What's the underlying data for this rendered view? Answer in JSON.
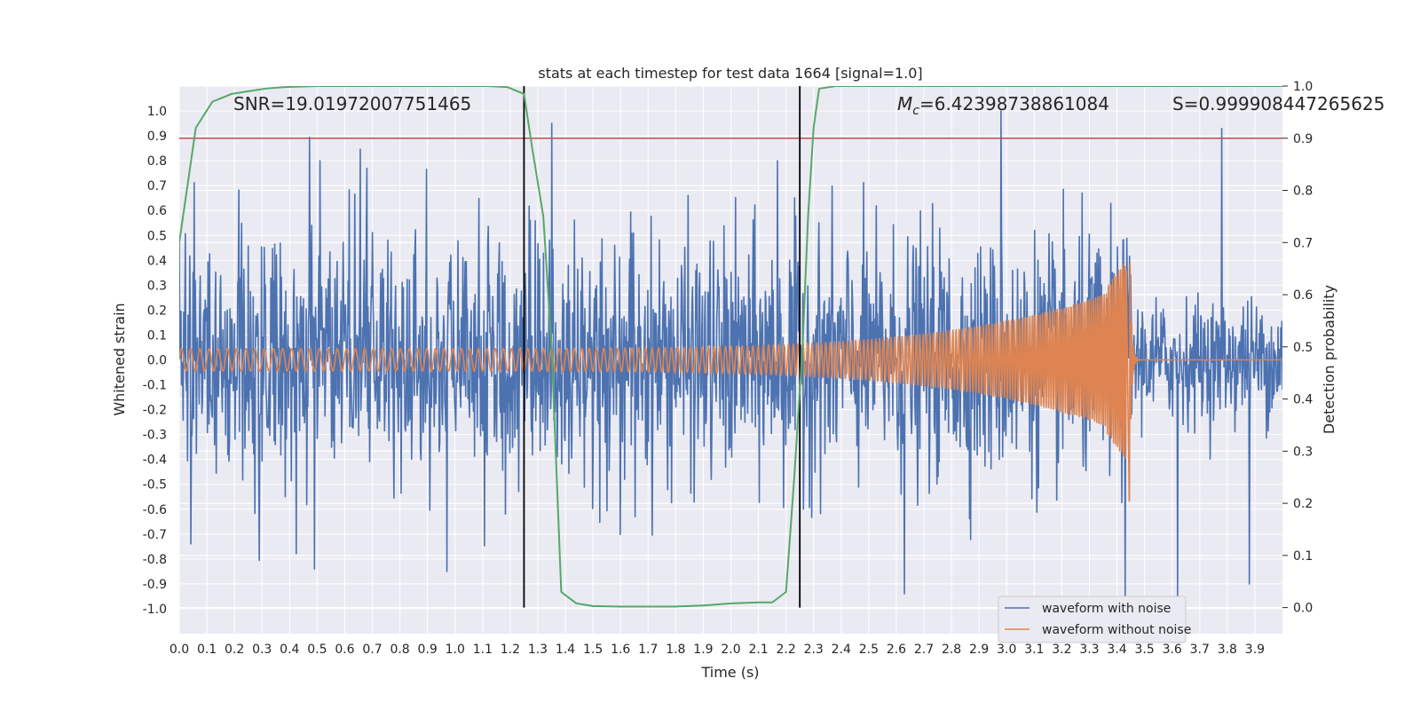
{
  "chart_data": {
    "type": "line",
    "title": "stats at each timestep for test data 1664 [signal=1.0]",
    "xlabel": "Time (s)",
    "ylabel": "Whitened strain",
    "ylabel_right": "Detection probability",
    "xlim": [
      0.0,
      4.0
    ],
    "ylim": [
      -1.1,
      1.1
    ],
    "ylim_right": [
      -0.05,
      1.0
    ],
    "grid": true,
    "xticks": [
      "0.0",
      "0.1",
      "0.2",
      "0.3",
      "0.4",
      "0.5",
      "0.6",
      "0.7",
      "0.8",
      "0.9",
      "1.0",
      "1.1",
      "1.2",
      "1.3",
      "1.4",
      "1.5",
      "1.6",
      "1.7",
      "1.8",
      "1.9",
      "2.0",
      "2.1",
      "2.2",
      "2.3",
      "2.4",
      "2.5",
      "2.6",
      "2.7",
      "2.8",
      "2.9",
      "3.0",
      "3.1",
      "3.2",
      "3.3",
      "3.4",
      "3.5",
      "3.6",
      "3.7",
      "3.8",
      "3.9"
    ],
    "yticks": [
      "1.0",
      "0.9",
      "0.8",
      "0.7",
      "0.6",
      "0.5",
      "0.4",
      "0.3",
      "0.2",
      "0.1",
      "0.0",
      "-0.1",
      "-0.2",
      "-0.3",
      "-0.4",
      "-0.5",
      "-0.6",
      "-0.7",
      "-0.8",
      "-0.9",
      "-1.0"
    ],
    "yticks_right": [
      "1.0",
      "0.9",
      "0.8",
      "0.7",
      "0.6",
      "0.5",
      "0.4",
      "0.3",
      "0.2",
      "0.1",
      "0.0"
    ],
    "annotations": {
      "snr": "SNR=19.01972007751465",
      "mc_symbol": "M",
      "mc_subscript": "c",
      "mc_value": "=6.42398738861084",
      "s": "S=0.999908447265625"
    },
    "threshold": {
      "value": 0.9,
      "axis": "right",
      "color": "#c44e52"
    },
    "vlines": [
      1.25,
      2.25
    ],
    "series": [
      {
        "name": "waveform with noise",
        "axis": "left",
        "color": "#4c72b0",
        "noise_std": 0.24,
        "n_points": 2000,
        "peaks": [
          [
            0.51,
            0.8
          ],
          [
            0.68,
            0.77
          ],
          [
            1.35,
            0.95
          ],
          [
            2.17,
            0.8
          ],
          [
            2.98,
            1.0
          ],
          [
            3.78,
            0.93
          ],
          [
            0.97,
            -0.85
          ],
          [
            0.49,
            -0.84
          ],
          [
            2.63,
            -0.94
          ],
          [
            3.43,
            -0.95
          ],
          [
            3.62,
            -0.95
          ],
          [
            3.88,
            -0.9
          ]
        ]
      },
      {
        "name": "waveform without noise",
        "axis": "left",
        "color": "#dd8452",
        "model": "chirp",
        "t_merger": 3.445,
        "amplitude_start": 0.045,
        "amplitude_peak": 0.42,
        "amplitude_trough": -0.61,
        "freq_start_hz": 30,
        "freq_end_hz": 140
      },
      {
        "name": "detection probability",
        "axis": "right",
        "color": "#55a868",
        "x": [
          0.0,
          0.06,
          0.12,
          0.19,
          0.25,
          0.31,
          0.38,
          0.5,
          0.75,
          1.0,
          1.12,
          1.19,
          1.25,
          1.28,
          1.32,
          1.35,
          1.385,
          1.44,
          1.5,
          1.6,
          1.7,
          1.8,
          1.9,
          2.0,
          2.1,
          2.15,
          2.2,
          2.23,
          2.26,
          2.28,
          2.3,
          2.32,
          2.38,
          2.5,
          2.75,
          3.0,
          3.5,
          4.0
        ],
        "y": [
          0.7,
          0.92,
          0.97,
          0.985,
          0.99,
          0.995,
          0.998,
          1.0,
          1.0,
          1.0,
          1.0,
          0.998,
          0.985,
          0.88,
          0.75,
          0.5,
          0.03,
          0.008,
          0.003,
          0.002,
          0.002,
          0.002,
          0.004,
          0.008,
          0.01,
          0.01,
          0.03,
          0.25,
          0.5,
          0.75,
          0.92,
          0.995,
          1.0,
          1.0,
          1.0,
          1.0,
          1.0,
          1.0
        ]
      }
    ]
  }
}
